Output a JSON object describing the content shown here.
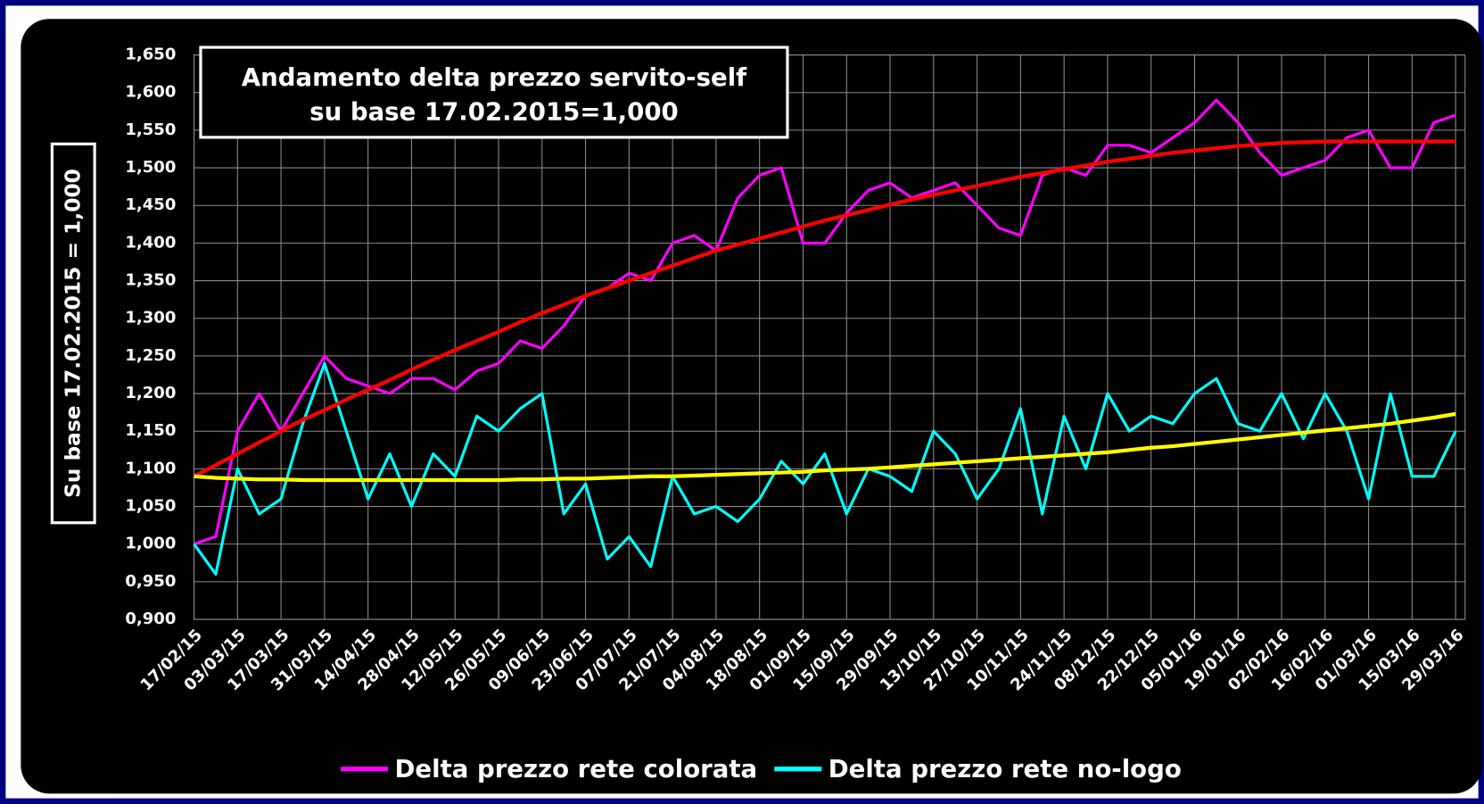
{
  "chart_data": {
    "type": "line",
    "title": "Andamento delta prezzo servito-self",
    "subtitle": "su base 17.02.2015=1,000",
    "y_label": "Su base 17.02.2015 = 1,000",
    "categories": [
      "17/02/15",
      null,
      "03/03/15",
      null,
      "17/03/15",
      null,
      "31/03/15",
      null,
      "14/04/15",
      null,
      "28/04/15",
      null,
      "12/05/15",
      null,
      "26/05/15",
      null,
      "09/06/15",
      null,
      "23/06/15",
      null,
      "07/07/15",
      null,
      "21/07/15",
      null,
      "04/08/15",
      null,
      "18/08/15",
      null,
      "01/09/15",
      null,
      "15/09/15",
      null,
      "29/09/15",
      null,
      "13/10/15",
      null,
      "27/10/15",
      null,
      "10/11/15",
      null,
      "24/11/15",
      null,
      "08/12/15",
      null,
      "22/12/15",
      null,
      "05/01/16",
      null,
      "19/01/16",
      null,
      "02/02/16",
      null,
      "16/02/16",
      null,
      "01/03/16",
      null,
      "15/03/16",
      null,
      "29/03/16"
    ],
    "series": [
      {
        "name": "Delta prezzo rete colorata",
        "color": "#ff00ff",
        "values": [
          1.0,
          1.01,
          1.15,
          1.2,
          1.15,
          1.2,
          1.25,
          1.22,
          1.21,
          1.2,
          1.22,
          1.22,
          1.205,
          1.23,
          1.24,
          1.27,
          1.26,
          1.29,
          1.33,
          1.34,
          1.36,
          1.35,
          1.4,
          1.41,
          1.39,
          1.46,
          1.49,
          1.5,
          1.4,
          1.4,
          1.44,
          1.47,
          1.48,
          1.46,
          1.47,
          1.48,
          1.45,
          1.42,
          1.41,
          1.49,
          1.5,
          1.49,
          1.53,
          1.53,
          1.52,
          1.54,
          1.56,
          1.59,
          1.56,
          1.52,
          1.49,
          1.5,
          1.51,
          1.54,
          1.55,
          1.5,
          1.5,
          1.56,
          1.57
        ]
      },
      {
        "name": "Delta prezzo rete no-logo",
        "color": "#00ffff",
        "values": [
          1.0,
          0.96,
          1.1,
          1.04,
          1.06,
          1.16,
          1.24,
          1.15,
          1.06,
          1.12,
          1.05,
          1.12,
          1.09,
          1.17,
          1.15,
          1.18,
          1.2,
          1.04,
          1.08,
          0.98,
          1.01,
          0.97,
          1.09,
          1.04,
          1.05,
          1.03,
          1.06,
          1.11,
          1.08,
          1.12,
          1.04,
          1.1,
          1.09,
          1.07,
          1.15,
          1.12,
          1.06,
          1.1,
          1.18,
          1.04,
          1.17,
          1.1,
          1.2,
          1.15,
          1.17,
          1.16,
          1.2,
          1.22,
          1.16,
          1.15,
          1.2,
          1.14,
          1.2,
          1.15,
          1.06,
          1.2,
          1.09,
          1.09,
          1.15
        ]
      },
      {
        "color": "#ff0000",
        "values": [
          1.09,
          1.105,
          1.12,
          1.135,
          1.15,
          1.165,
          1.178,
          1.192,
          1.205,
          1.218,
          1.232,
          1.245,
          1.258,
          1.27,
          1.282,
          1.295,
          1.307,
          1.318,
          1.33,
          1.34,
          1.35,
          1.36,
          1.37,
          1.38,
          1.39,
          1.398,
          1.406,
          1.414,
          1.422,
          1.43,
          1.437,
          1.444,
          1.451,
          1.458,
          1.464,
          1.47,
          1.476,
          1.482,
          1.488,
          1.493,
          1.498,
          1.503,
          1.508,
          1.512,
          1.516,
          1.52,
          1.523,
          1.526,
          1.529,
          1.531,
          1.533,
          1.534,
          1.535,
          1.535,
          1.535,
          1.535,
          1.535,
          1.535,
          1.535
        ]
      },
      {
        "color": "#ffff00",
        "values": [
          1.09,
          1.088,
          1.087,
          1.086,
          1.086,
          1.085,
          1.085,
          1.085,
          1.085,
          1.085,
          1.085,
          1.085,
          1.085,
          1.085,
          1.085,
          1.086,
          1.086,
          1.087,
          1.087,
          1.088,
          1.089,
          1.09,
          1.09,
          1.091,
          1.092,
          1.093,
          1.094,
          1.095,
          1.096,
          1.098,
          1.099,
          1.1,
          1.102,
          1.104,
          1.106,
          1.108,
          1.11,
          1.112,
          1.114,
          1.116,
          1.118,
          1.12,
          1.122,
          1.125,
          1.128,
          1.13,
          1.133,
          1.136,
          1.139,
          1.142,
          1.145,
          1.148,
          1.151,
          1.154,
          1.157,
          1.16,
          1.164,
          1.168,
          1.173
        ]
      }
    ],
    "ylim": [
      0.9,
      1.65
    ],
    "yticks": [
      {
        "value": 0.9,
        "label": "0,900"
      },
      {
        "value": 0.95,
        "label": "0,950"
      },
      {
        "value": 1.0,
        "label": "1,000"
      },
      {
        "value": 1.05,
        "label": "1,050"
      },
      {
        "value": 1.1,
        "label": "1,100"
      },
      {
        "value": 1.15,
        "label": "1,150"
      },
      {
        "value": 1.2,
        "label": "1,200"
      },
      {
        "value": 1.25,
        "label": "1,250"
      },
      {
        "value": 1.3,
        "label": "1,300"
      },
      {
        "value": 1.35,
        "label": "1,350"
      },
      {
        "value": 1.4,
        "label": "1,400"
      },
      {
        "value": 1.45,
        "label": "1,450"
      },
      {
        "value": 1.5,
        "label": "1,500"
      },
      {
        "value": 1.55,
        "label": "1,550"
      },
      {
        "value": 1.6,
        "label": "1,600"
      },
      {
        "value": 1.65,
        "label": "1,650"
      }
    ],
    "grid": true,
    "legend": "bottom"
  }
}
